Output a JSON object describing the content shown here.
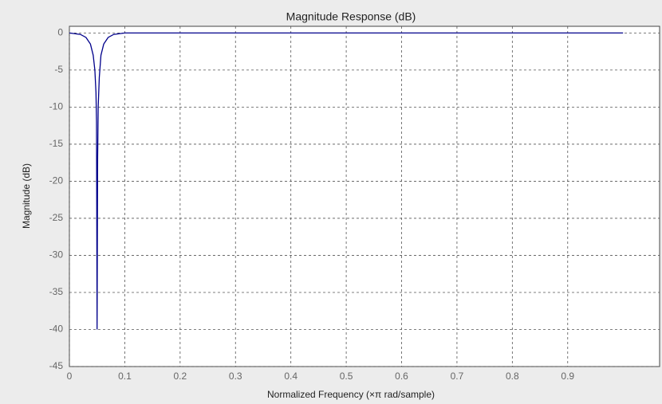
{
  "chart_data": {
    "type": "line",
    "title": "Magnitude Response (dB)",
    "x_label": "Normalized Frequency (×π rad/sample)",
    "y_label": "Magnitude (dB)",
    "x": [
      0,
      0.02,
      0.03,
      0.038,
      0.043,
      0.046,
      0.048,
      0.049,
      0.05,
      0.051,
      0.052,
      0.054,
      0.057,
      0.062,
      0.07,
      0.08,
      0.1,
      1.0
    ],
    "series": [
      {
        "color": "#00008b",
        "values": [
          0,
          -0.2,
          -0.6,
          -1.5,
          -3,
          -5,
          -8,
          -12,
          -40,
          -17,
          -10,
          -6,
          -3,
          -1.5,
          -0.6,
          -0.2,
          0,
          0
        ]
      }
    ],
    "xlim": [
      0,
      1.066
    ],
    "ylim": [
      -45,
      0.9
    ],
    "xticks": [
      0,
      0.1,
      0.2,
      0.3,
      0.4,
      0.5,
      0.6,
      0.7,
      0.8,
      0.9
    ],
    "yticks": [
      0,
      -5,
      -10,
      -15,
      -20,
      -25,
      -30,
      -35,
      -40,
      -45
    ],
    "grid": true
  }
}
